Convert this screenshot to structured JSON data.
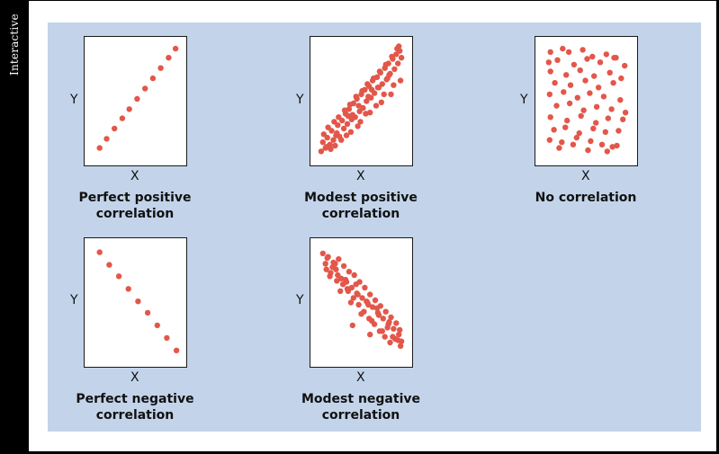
{
  "sidebar": {
    "label": "Interactive"
  },
  "colors": {
    "dot": "#e2574a",
    "panel": "#c3d4ea",
    "frame": "#000000"
  },
  "chart_data": [
    {
      "type": "scatter",
      "caption": "Perfect positive correlation",
      "xlabel": "X",
      "ylabel": "Y",
      "xlim": [
        0,
        10
      ],
      "ylim": [
        0,
        10
      ],
      "x": [
        0.9,
        1.7,
        2.6,
        3.5,
        4.3,
        5.2,
        6.1,
        7.0,
        7.9,
        8.8,
        9.6
      ],
      "y": [
        0.9,
        1.7,
        2.6,
        3.5,
        4.3,
        5.2,
        6.1,
        7.0,
        7.9,
        8.8,
        9.6
      ]
    },
    {
      "type": "scatter",
      "caption": "Modest positive correlation",
      "xlabel": "X",
      "ylabel": "Y",
      "xlim": [
        0,
        10
      ],
      "ylim": [
        0,
        10
      ],
      "x": [
        0.4,
        0.6,
        0.9,
        1.1,
        1.4,
        1.6,
        1.8,
        2.1,
        2.3,
        2.5,
        2.8,
        3.0,
        3.2,
        3.4,
        3.6,
        3.9,
        4.1,
        4.3,
        4.5,
        4.8,
        5.0,
        5.2,
        5.4,
        5.6,
        5.9,
        6.1,
        6.3,
        6.5,
        6.8,
        7.0,
        7.2,
        7.4,
        7.7,
        7.9,
        8.1,
        8.3,
        8.6,
        8.8,
        9.0,
        9.2,
        9.4,
        9.6,
        0.7,
        1.2,
        1.9,
        2.4,
        3.1,
        3.7,
        4.4,
        5.1,
        5.7,
        6.4,
        7.1,
        7.8,
        8.5,
        9.1,
        1.5,
        2.7,
        3.8,
        4.9,
        6.0,
        7.3,
        8.4,
        9.5,
        2.0,
        3.3,
        4.6,
        5.5,
        6.7,
        7.6,
        8.7,
        1.0,
        2.2,
        3.5,
        4.7,
        5.8,
        6.9,
        8.0,
        9.3,
        4.0,
        6.2,
        8.2
      ],
      "y": [
        0.6,
        1.4,
        0.9,
        1.8,
        1.2,
        2.4,
        1.6,
        2.0,
        2.9,
        1.9,
        3.3,
        2.6,
        3.9,
        3.0,
        4.3,
        3.4,
        4.8,
        3.6,
        5.2,
        4.1,
        5.6,
        4.4,
        6.0,
        5.0,
        6.3,
        5.3,
        6.8,
        5.7,
        7.1,
        6.2,
        7.5,
        6.5,
        7.9,
        6.9,
        8.3,
        7.4,
        8.7,
        7.8,
        9.1,
        8.3,
        9.4,
        8.8,
        2.1,
        2.7,
        3.2,
        3.6,
        4.2,
        4.7,
        5.4,
        5.9,
        6.5,
        7.0,
        7.6,
        8.2,
        8.9,
        9.6,
        0.8,
        1.6,
        2.3,
        3.2,
        4.0,
        4.9,
        5.6,
        6.8,
        1.1,
        2.0,
        2.8,
        3.9,
        4.6,
        5.6,
        6.4,
        1.0,
        2.2,
        3.7,
        4.6,
        5.4,
        6.2,
        7.0,
        9.8,
        3.8,
        6.0,
        7.3
      ]
    },
    {
      "type": "scatter",
      "caption": "No correlation",
      "xlabel": "X",
      "ylabel": "Y",
      "xlim": [
        0,
        10
      ],
      "ylim": [
        0,
        10
      ],
      "x": [
        0.9,
        2.3,
        3.0,
        4.6,
        5.7,
        7.3,
        8.2,
        0.7,
        1.7,
        3.6,
        5.1,
        6.6,
        8.4,
        9.4,
        0.9,
        2.7,
        4.3,
        5.9,
        7.7,
        9.0,
        1.4,
        3.2,
        4.9,
        6.4,
        8.1,
        0.8,
        2.4,
        4.0,
        5.4,
        7.0,
        8.9,
        1.6,
        3.1,
        4.7,
        6.2,
        7.9,
        9.5,
        0.9,
        2.8,
        4.4,
        6.1,
        7.5,
        9.2,
        1.3,
        2.6,
        4.2,
        5.8,
        7.2,
        8.7,
        0.8,
        2.2,
        3.9,
        5.5,
        6.8,
        8.5,
        1.9,
        3.5,
        5.2,
        7.4,
        8.0
      ],
      "y": [
        9.3,
        9.6,
        9.3,
        9.5,
        8.9,
        9.1,
        8.8,
        8.4,
        8.6,
        8.2,
        8.7,
        8.4,
        8.8,
        8.1,
        7.6,
        7.3,
        7.7,
        7.2,
        7.5,
        7.0,
        6.6,
        6.4,
        6.8,
        6.2,
        6.6,
        5.6,
        5.8,
        5.3,
        5.7,
        5.4,
        5.1,
        4.6,
        4.8,
        4.2,
        4.5,
        4.3,
        4.0,
        3.6,
        3.3,
        3.7,
        3.1,
        3.5,
        3.4,
        2.5,
        2.7,
        2.2,
        2.6,
        2.3,
        2.4,
        1.6,
        1.4,
        1.8,
        1.5,
        1.2,
        1.1,
        0.9,
        1.2,
        0.7,
        0.6,
        1.0
      ]
    },
    {
      "type": "scatter",
      "caption": "Perfect negative correlation",
      "xlabel": "X",
      "ylabel": "Y",
      "xlim": [
        0,
        10
      ],
      "ylim": [
        0,
        10
      ],
      "x": [
        0.9,
        2.0,
        3.1,
        4.2,
        5.3,
        6.4,
        7.5,
        8.6,
        9.7
      ],
      "y": [
        9.4,
        8.3,
        7.3,
        6.2,
        5.1,
        4.1,
        3.0,
        1.9,
        0.8
      ]
    },
    {
      "type": "scatter",
      "caption": "Modest negative correlation",
      "xlabel": "X",
      "ylabel": "Y",
      "xlim": [
        0,
        10
      ],
      "ylim": [
        0,
        10
      ],
      "x": [
        0.6,
        0.9,
        1.2,
        1.5,
        1.8,
        2.1,
        2.4,
        2.7,
        3.0,
        3.3,
        3.6,
        3.9,
        4.2,
        4.5,
        4.8,
        5.1,
        5.4,
        5.7,
        6.0,
        6.3,
        6.6,
        6.9,
        7.2,
        7.5,
        7.8,
        8.1,
        8.4,
        8.7,
        9.0,
        9.3,
        9.6,
        1.1,
        1.7,
        2.3,
        2.9,
        3.5,
        4.1,
        4.7,
        5.3,
        5.9,
        6.5,
        7.1,
        7.7,
        8.3,
        8.9,
        9.5,
        1.4,
        2.6,
        3.8,
        5.0,
        6.2,
        7.4,
        8.6,
        2.0,
        3.2,
        4.4,
        5.6,
        6.8,
        8.0,
        9.2,
        1.0,
        2.2,
        3.4,
        4.6,
        5.8,
        7.0,
        8.2,
        9.4,
        4.0,
        6.0
      ],
      "y": [
        9.3,
        8.4,
        9.0,
        7.6,
        8.5,
        7.9,
        8.8,
        7.1,
        8.2,
        6.8,
        7.7,
        6.3,
        7.4,
        5.8,
        6.8,
        5.4,
        6.3,
        5.0,
        5.7,
        4.6,
        5.2,
        4.1,
        4.7,
        3.6,
        4.2,
        3.1,
        3.7,
        2.7,
        3.2,
        2.2,
        1.6,
        8.9,
        8.1,
        7.4,
        6.6,
        6.0,
        5.4,
        4.8,
        4.2,
        3.6,
        3.1,
        2.5,
        2.0,
        1.5,
        1.8,
        1.2,
        7.3,
        6.0,
        5.0,
        4.0,
        3.4,
        2.5,
        2.0,
        8.4,
        7.0,
        6.6,
        5.1,
        4.5,
        2.8,
        1.7,
        7.9,
        6.9,
        6.2,
        5.7,
        4.8,
        3.9,
        3.3,
        2.6,
        3.0,
        2.2
      ]
    }
  ]
}
